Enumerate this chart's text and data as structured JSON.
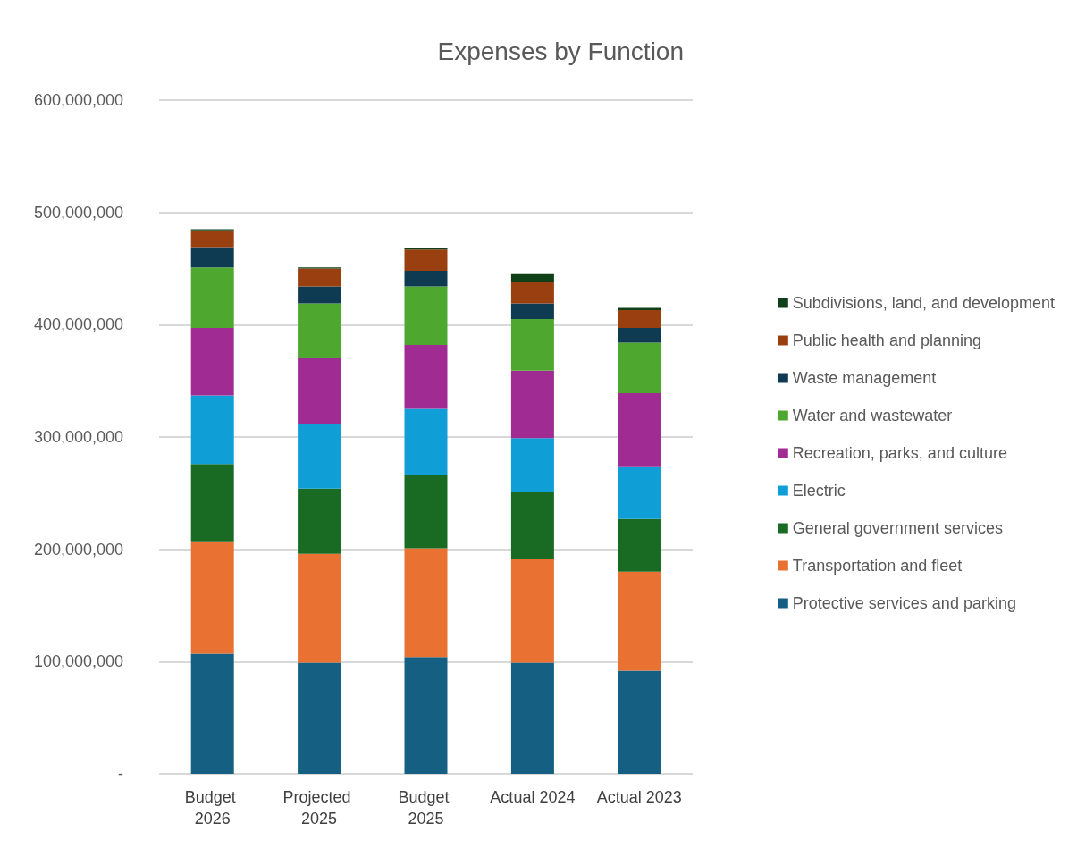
{
  "chart_data": {
    "type": "bar",
    "title": "Expenses by Function",
    "stacked": true,
    "categories": [
      "Budget 2026",
      "Projected 2025",
      "Budget 2025",
      "Actual 2024",
      "Actual 2023"
    ],
    "series": [
      {
        "name": "Protective services and parking",
        "color": "#156082",
        "values": [
          107000000,
          99000000,
          104000000,
          99000000,
          92000000
        ]
      },
      {
        "name": "Transportation and fleet",
        "color": "#e97132",
        "values": [
          100000000,
          97000000,
          97000000,
          92000000,
          88000000
        ]
      },
      {
        "name": "General government services",
        "color": "#196b24",
        "values": [
          69000000,
          58000000,
          65000000,
          60000000,
          47000000
        ]
      },
      {
        "name": "Electric",
        "color": "#0f9ed5",
        "values": [
          61000000,
          58000000,
          59000000,
          48000000,
          47000000
        ]
      },
      {
        "name": "Recreation, parks, and culture",
        "color": "#a02b93",
        "values": [
          60000000,
          58000000,
          57000000,
          60000000,
          65000000
        ]
      },
      {
        "name": "Water and wastewater",
        "color": "#4ea72e",
        "values": [
          54000000,
          49000000,
          52000000,
          46000000,
          45000000
        ]
      },
      {
        "name": "Waste management",
        "color": "#0e3a52",
        "values": [
          18000000,
          15000000,
          14000000,
          14000000,
          13000000
        ]
      },
      {
        "name": "Public health and planning",
        "color": "#9a3f10",
        "values": [
          15000000,
          16000000,
          19000000,
          19000000,
          16000000
        ]
      },
      {
        "name": "Subdivisions, land, and development",
        "color": "#0f4019",
        "values": [
          1000000,
          1000000,
          1000000,
          7000000,
          2000000
        ]
      }
    ],
    "ylim": [
      0,
      600000000
    ],
    "yticks": [
      {
        "value": 0,
        "label": "-"
      },
      {
        "value": 100000000,
        "label": "100,000,000"
      },
      {
        "value": 200000000,
        "label": "200,000,000"
      },
      {
        "value": 300000000,
        "label": "300,000,000"
      },
      {
        "value": 400000000,
        "label": "400,000,000"
      },
      {
        "value": 500000000,
        "label": "500,000,000"
      },
      {
        "value": 600000000,
        "label": "600,000,000"
      }
    ],
    "grid": "y",
    "legend": "right"
  }
}
